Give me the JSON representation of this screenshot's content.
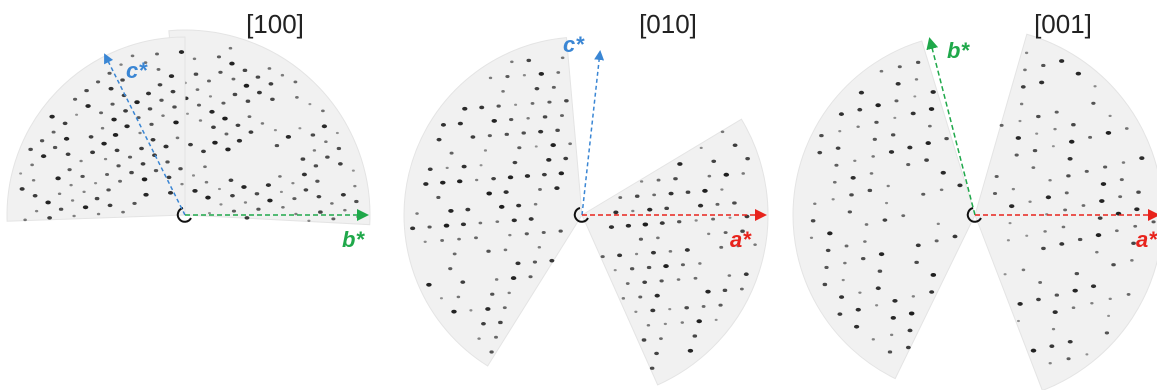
{
  "panels": [
    {
      "title": "[100]",
      "axes": [
        "c*",
        "b*"
      ]
    },
    {
      "title": "[010]",
      "axes": [
        "c*",
        "a*"
      ]
    },
    {
      "title": "[001]",
      "axes": [
        "b*",
        "a*"
      ]
    }
  ]
}
